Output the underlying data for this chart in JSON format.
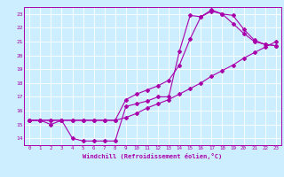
{
  "xlabel": "Windchill (Refroidissement éolien,°C)",
  "bg_color": "#cceeff",
  "line_color": "#aa00aa",
  "grid_color": "#ffffff",
  "xlim": [
    -0.5,
    23.5
  ],
  "ylim": [
    13.5,
    23.5
  ],
  "xticks": [
    0,
    1,
    2,
    3,
    4,
    5,
    6,
    7,
    8,
    9,
    10,
    11,
    12,
    13,
    14,
    15,
    16,
    17,
    18,
    19,
    20,
    21,
    22,
    23
  ],
  "yticks": [
    14,
    15,
    16,
    17,
    18,
    19,
    20,
    21,
    22,
    23
  ],
  "line1_x": [
    0,
    1,
    2,
    3,
    4,
    5,
    6,
    7,
    8,
    9,
    10,
    11,
    12,
    13,
    14,
    15,
    16,
    17,
    18,
    19,
    20,
    21,
    22,
    23
  ],
  "line1_y": [
    15.3,
    15.3,
    15.0,
    15.3,
    14.0,
    13.8,
    13.8,
    13.8,
    13.8,
    16.3,
    16.5,
    16.7,
    17.0,
    17.0,
    20.3,
    22.9,
    22.8,
    23.3,
    23.0,
    22.9,
    21.9,
    21.1,
    20.8,
    20.7
  ],
  "line2_x": [
    0,
    1,
    2,
    3,
    4,
    5,
    6,
    7,
    8,
    9,
    10,
    11,
    12,
    13,
    14,
    15,
    16,
    17,
    18,
    19,
    20,
    21,
    22,
    23
  ],
  "line2_y": [
    15.3,
    15.3,
    15.3,
    15.3,
    15.3,
    15.3,
    15.3,
    15.3,
    15.3,
    15.5,
    15.8,
    16.2,
    16.5,
    16.8,
    17.2,
    17.6,
    18.0,
    18.5,
    18.9,
    19.3,
    19.8,
    20.2,
    20.6,
    21.0
  ],
  "line3_x": [
    0,
    1,
    2,
    3,
    4,
    5,
    6,
    7,
    8,
    9,
    10,
    11,
    12,
    13,
    14,
    15,
    16,
    17,
    18,
    19,
    20,
    21,
    22,
    23
  ],
  "line3_y": [
    15.3,
    15.3,
    15.3,
    15.3,
    15.3,
    15.3,
    15.3,
    15.3,
    15.3,
    16.8,
    17.2,
    17.5,
    17.8,
    18.2,
    19.3,
    21.2,
    22.8,
    23.2,
    23.0,
    22.3,
    21.6,
    21.0,
    20.8,
    20.7
  ]
}
